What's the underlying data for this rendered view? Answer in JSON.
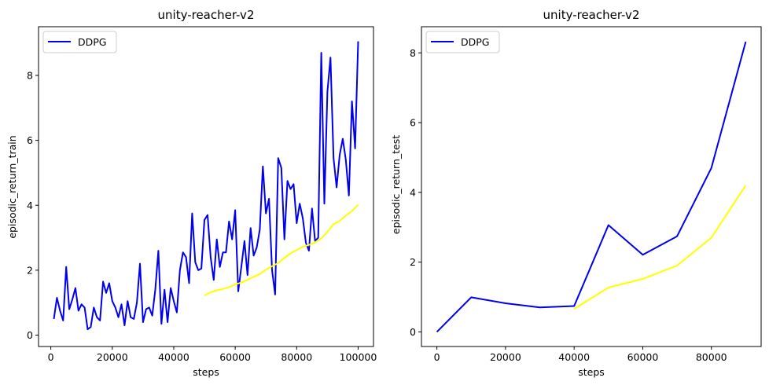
{
  "colors": {
    "series": "#0000ee",
    "smoothed": "#ffff00",
    "axis": "#000000"
  },
  "chart_data": [
    {
      "type": "line",
      "title": "unity-reacher-v2",
      "xlabel": "steps",
      "ylabel": "episodic_return_train",
      "xlim": [
        -4000,
        105000
      ],
      "ylim": [
        -0.35,
        9.5
      ],
      "xticks": [
        0,
        20000,
        40000,
        60000,
        80000,
        100000
      ],
      "xtick_labels": [
        "0",
        "20000",
        "40000",
        "60000",
        "80000",
        "100000"
      ],
      "yticks": [
        0,
        2,
        4,
        6,
        8
      ],
      "ytick_labels": [
        "0",
        "2",
        "4",
        "6",
        "8"
      ],
      "legend": {
        "placement": "top-left",
        "entries": [
          "DDPG"
        ]
      },
      "grid": false,
      "series": [
        {
          "name": "DDPG",
          "color": "#0000ee",
          "x": [
            1000,
            2000,
            3000,
            4000,
            5000,
            6000,
            7000,
            8000,
            9000,
            10000,
            11000,
            12000,
            13000,
            14000,
            15000,
            16000,
            17000,
            18000,
            19000,
            20000,
            21000,
            22000,
            23000,
            24000,
            25000,
            26000,
            27000,
            28000,
            29000,
            30000,
            31000,
            32000,
            33000,
            34000,
            35000,
            36000,
            37000,
            38000,
            39000,
            40000,
            41000,
            42000,
            43000,
            44000,
            45000,
            46000,
            47000,
            48000,
            49000,
            50000,
            51000,
            52000,
            53000,
            54000,
            55000,
            56000,
            57000,
            58000,
            59000,
            60000,
            61000,
            62000,
            63000,
            64000,
            65000,
            66000,
            67000,
            68000,
            69000,
            70000,
            71000,
            72000,
            73000,
            74000,
            75000,
            76000,
            77000,
            78000,
            79000,
            80000,
            81000,
            82000,
            83000,
            84000,
            85000,
            86000,
            87000,
            88000,
            89000,
            90000,
            91000,
            92000,
            93000,
            94000,
            95000,
            96000,
            97000,
            98000,
            99000,
            100000
          ],
          "values": [
            0.5,
            1.15,
            0.75,
            0.45,
            2.1,
            0.8,
            1.1,
            1.45,
            0.75,
            0.95,
            0.85,
            0.18,
            0.25,
            0.85,
            0.55,
            0.45,
            1.65,
            1.3,
            1.6,
            1.05,
            0.85,
            0.55,
            0.95,
            0.3,
            1.05,
            0.55,
            0.5,
            1.0,
            2.2,
            0.4,
            0.8,
            0.85,
            0.6,
            1.4,
            2.6,
            0.35,
            1.4,
            0.4,
            1.45,
            1.05,
            0.7,
            2.0,
            2.55,
            2.4,
            1.6,
            3.75,
            2.25,
            2.0,
            2.05,
            3.55,
            3.7,
            2.4,
            1.7,
            2.95,
            2.1,
            2.55,
            2.55,
            3.5,
            2.95,
            3.85,
            1.35,
            2.1,
            2.9,
            1.85,
            3.3,
            2.45,
            2.7,
            3.25,
            5.2,
            3.75,
            4.2,
            2.0,
            1.25,
            5.45,
            5.15,
            2.95,
            4.75,
            4.5,
            4.65,
            3.45,
            4.05,
            3.6,
            2.85,
            2.6,
            3.9,
            2.9,
            3.0,
            8.7,
            4.05,
            7.5,
            8.55,
            5.45,
            4.55,
            5.55,
            6.05,
            5.4,
            4.3,
            7.2,
            5.75,
            9.05
          ]
        },
        {
          "name": "",
          "color": "#ffff00",
          "x": [
            50000,
            52000,
            54000,
            56000,
            58000,
            60000,
            62000,
            64000,
            66000,
            68000,
            70000,
            72000,
            74000,
            76000,
            78000,
            80000,
            82000,
            84000,
            86000,
            88000,
            90000,
            92000,
            94000,
            96000,
            98000,
            100000
          ],
          "values": [
            1.22,
            1.32,
            1.38,
            1.42,
            1.48,
            1.56,
            1.62,
            1.7,
            1.8,
            1.88,
            2.02,
            2.12,
            2.22,
            2.38,
            2.52,
            2.62,
            2.72,
            2.78,
            2.86,
            2.98,
            3.18,
            3.42,
            3.52,
            3.68,
            3.82,
            4.02
          ]
        }
      ]
    },
    {
      "type": "line",
      "title": "unity-reacher-v2",
      "xlabel": "steps",
      "ylabel": "episodic_return_test",
      "xlim": [
        -4500,
        94500
      ],
      "ylim": [
        -0.42,
        8.75
      ],
      "xticks": [
        0,
        20000,
        40000,
        60000,
        80000
      ],
      "xtick_labels": [
        "0",
        "20000",
        "40000",
        "60000",
        "80000"
      ],
      "yticks": [
        0,
        2,
        4,
        6,
        8
      ],
      "ytick_labels": [
        "0",
        "2",
        "4",
        "6",
        "8"
      ],
      "legend": {
        "placement": "top-left",
        "entries": [
          "DDPG"
        ]
      },
      "grid": false,
      "series": [
        {
          "name": "DDPG",
          "color": "#0000ee",
          "x": [
            0,
            10000,
            20000,
            30000,
            40000,
            50000,
            60000,
            70000,
            80000,
            90000
          ],
          "values": [
            0.0,
            0.99,
            0.82,
            0.7,
            0.74,
            3.06,
            2.21,
            2.74,
            4.7,
            8.32
          ]
        },
        {
          "name": "",
          "color": "#ffff00",
          "x": [
            40000,
            50000,
            60000,
            70000,
            80000,
            90000
          ],
          "values": [
            0.66,
            1.27,
            1.52,
            1.9,
            2.7,
            4.2
          ]
        }
      ]
    }
  ]
}
